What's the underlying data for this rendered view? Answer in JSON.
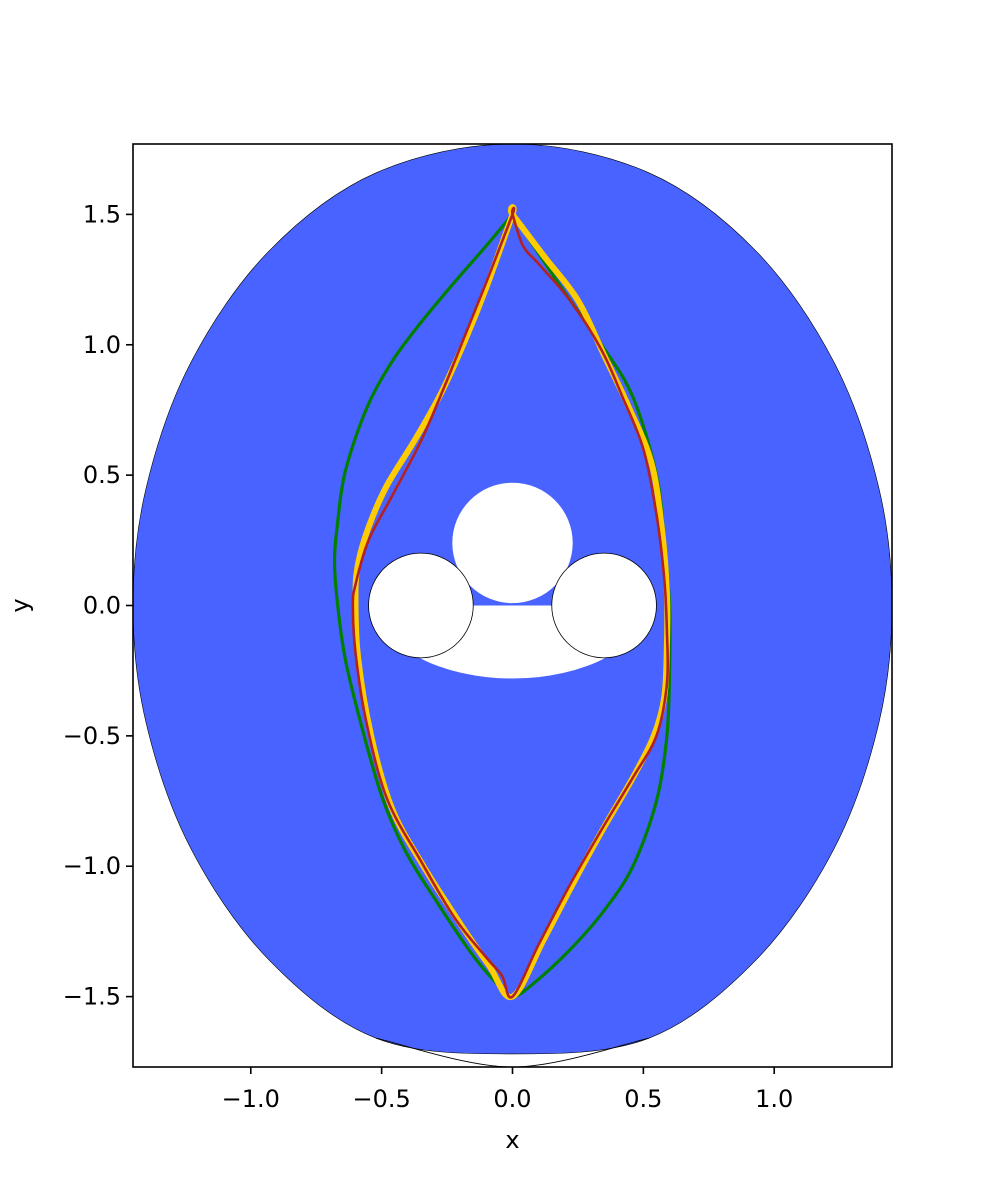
{
  "chart_data": {
    "type": "line",
    "title": "",
    "xlabel": "x",
    "ylabel": "y",
    "xlim": [
      -1.45,
      1.45
    ],
    "ylim": [
      -1.77,
      1.77
    ],
    "x_ticks": [
      -1.0,
      -0.5,
      0.0,
      0.5,
      1.0
    ],
    "x_tick_labels": [
      "−1.0",
      "−0.5",
      "0.0",
      "0.5",
      "1.0"
    ],
    "y_ticks": [
      -1.5,
      -1.0,
      -0.5,
      0.0,
      0.5,
      1.0,
      1.5
    ],
    "y_tick_labels": [
      "−1.5",
      "−1.0",
      "−0.5",
      "0.0",
      "0.5",
      "1.0",
      "1.5"
    ],
    "grid": false,
    "colors": {
      "domain_fill": "#4863ff",
      "obstacle_fill": "#ffffff",
      "outline": "#000000"
    },
    "domain": {
      "outer_boundary": [
        [
          0.0,
          1.77
        ],
        [
          -0.52,
          1.66
        ],
        [
          -0.93,
          1.36
        ],
        [
          -1.23,
          0.93
        ],
        [
          -1.4,
          0.45
        ],
        [
          -1.45,
          0.0
        ],
        [
          -1.4,
          -0.45
        ],
        [
          -1.23,
          -0.93
        ],
        [
          -0.93,
          -1.36
        ],
        [
          -0.52,
          -1.66
        ],
        [
          0.0,
          -1.72
        ],
        [
          0.52,
          -1.66
        ],
        [
          0.93,
          -1.36
        ],
        [
          1.23,
          -0.93
        ],
        [
          1.4,
          -0.45
        ],
        [
          1.45,
          0.0
        ],
        [
          1.4,
          0.45
        ],
        [
          1.23,
          0.93
        ],
        [
          0.93,
          1.36
        ],
        [
          0.52,
          1.66
        ]
      ],
      "cusp_boundary": [
        [
          -0.52,
          -1.66
        ],
        [
          0.0,
          -1.77
        ],
        [
          0.52,
          -1.66
        ]
      ],
      "top_obstacle": {
        "center": [
          0.0,
          0.24
        ],
        "radius": 0.23
      },
      "bottom_obstacle": {
        "center": [
          0.0,
          0.0
        ],
        "half_width": 0.51,
        "bottom": -0.28
      },
      "small_circles": [
        {
          "center": [
            -0.35,
            0.0
          ],
          "radius": 0.2
        },
        {
          "center": [
            0.35,
            0.0
          ],
          "radius": 0.2
        }
      ]
    },
    "series": [
      {
        "color": "#008000",
        "width": 3.2,
        "points": [
          [
            0.0,
            1.5
          ],
          [
            -0.1,
            1.38
          ],
          [
            -0.23,
            1.23
          ],
          [
            -0.37,
            1.06
          ],
          [
            -0.47,
            0.92
          ],
          [
            -0.56,
            0.75
          ],
          [
            -0.64,
            0.51
          ],
          [
            -0.67,
            0.3
          ],
          [
            -0.68,
            0.17
          ],
          [
            -0.67,
            0.02
          ],
          [
            -0.64,
            -0.2
          ],
          [
            -0.58,
            -0.45
          ],
          [
            -0.5,
            -0.73
          ],
          [
            -0.41,
            -0.94
          ],
          [
            -0.3,
            -1.12
          ],
          [
            -0.16,
            -1.33
          ],
          [
            -0.06,
            -1.45
          ],
          [
            0.0,
            -1.5
          ],
          [
            0.08,
            -1.45
          ],
          [
            0.22,
            -1.32
          ],
          [
            0.35,
            -1.17
          ],
          [
            0.46,
            -1.0
          ],
          [
            0.55,
            -0.75
          ],
          [
            0.59,
            -0.5
          ],
          [
            0.6,
            -0.25
          ],
          [
            0.6,
            0.0
          ],
          [
            0.58,
            0.25
          ],
          [
            0.55,
            0.5
          ],
          [
            0.46,
            0.8
          ],
          [
            0.34,
            1.0
          ],
          [
            0.2,
            1.2
          ],
          [
            0.08,
            1.38
          ],
          [
            0.0,
            1.5
          ]
        ]
      },
      {
        "color": "#ffcc00",
        "width": 6,
        "points": [
          [
            0.0,
            1.5
          ],
          [
            -0.1,
            1.22
          ],
          [
            -0.18,
            1.02
          ],
          [
            -0.27,
            0.82
          ],
          [
            -0.37,
            0.64
          ],
          [
            -0.48,
            0.46
          ],
          [
            -0.55,
            0.3
          ],
          [
            -0.59,
            0.16
          ],
          [
            -0.6,
            0.03
          ],
          [
            -0.59,
            -0.2
          ],
          [
            -0.54,
            -0.5
          ],
          [
            -0.46,
            -0.78
          ],
          [
            -0.34,
            -1.0
          ],
          [
            -0.2,
            -1.22
          ],
          [
            -0.09,
            -1.38
          ],
          [
            0.0,
            -1.5
          ],
          [
            0.12,
            -1.28
          ],
          [
            0.24,
            -1.05
          ],
          [
            0.35,
            -0.85
          ],
          [
            0.46,
            -0.66
          ],
          [
            0.54,
            -0.5
          ],
          [
            0.58,
            -0.35
          ],
          [
            0.59,
            -0.15
          ],
          [
            0.59,
            0.05
          ],
          [
            0.57,
            0.3
          ],
          [
            0.53,
            0.55
          ],
          [
            0.44,
            0.77
          ],
          [
            0.35,
            0.96
          ],
          [
            0.25,
            1.17
          ],
          [
            0.12,
            1.34
          ],
          [
            0.0,
            1.5
          ]
        ]
      },
      {
        "color": "#b22222",
        "width": 2.6,
        "points": [
          [
            0.0,
            1.5
          ],
          [
            -0.1,
            1.24
          ],
          [
            -0.18,
            1.04
          ],
          [
            -0.26,
            0.84
          ],
          [
            -0.35,
            0.63
          ],
          [
            -0.46,
            0.42
          ],
          [
            -0.55,
            0.25
          ],
          [
            -0.6,
            0.08
          ],
          [
            -0.61,
            0.0
          ],
          [
            -0.6,
            -0.18
          ],
          [
            -0.56,
            -0.44
          ],
          [
            -0.48,
            -0.74
          ],
          [
            -0.35,
            -0.98
          ],
          [
            -0.22,
            -1.2
          ],
          [
            -0.1,
            -1.35
          ],
          [
            -0.04,
            -1.42
          ],
          [
            0.0,
            -1.5
          ],
          [
            0.1,
            -1.3
          ],
          [
            0.22,
            -1.07
          ],
          [
            0.34,
            -0.86
          ],
          [
            0.46,
            -0.66
          ],
          [
            0.55,
            -0.5
          ],
          [
            0.59,
            -0.3
          ],
          [
            0.59,
            -0.1
          ],
          [
            0.58,
            0.1
          ],
          [
            0.55,
            0.35
          ],
          [
            0.5,
            0.6
          ],
          [
            0.42,
            0.8
          ],
          [
            0.34,
            0.98
          ],
          [
            0.22,
            1.17
          ],
          [
            0.1,
            1.31
          ],
          [
            0.04,
            1.38
          ],
          [
            0.0,
            1.5
          ]
        ]
      }
    ]
  }
}
